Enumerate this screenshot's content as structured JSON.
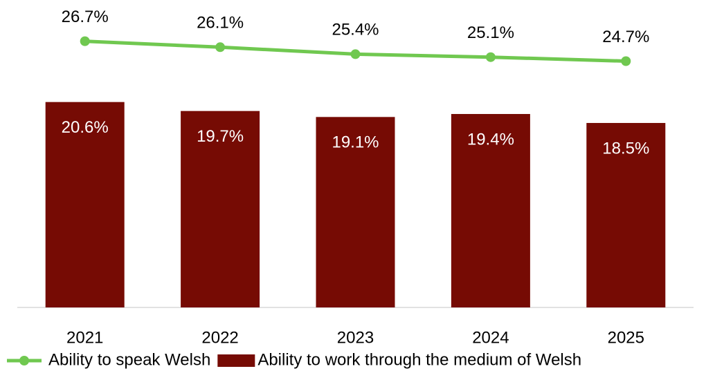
{
  "chart_data": {
    "type": "bar",
    "categories": [
      "2021",
      "2022",
      "2023",
      "2024",
      "2025"
    ],
    "ylim": [
      0,
      30
    ],
    "series": [
      {
        "name": "Ability to speak Welsh",
        "type": "line",
        "color": "#70c850",
        "values": [
          26.7,
          26.1,
          25.4,
          25.1,
          24.7
        ],
        "value_labels": [
          "26.7%",
          "26.1%",
          "25.4%",
          "25.1%",
          "24.7%"
        ]
      },
      {
        "name": "Ability to work through the medium of Welsh",
        "type": "bar",
        "color": "#760b04",
        "values": [
          20.6,
          19.7,
          19.1,
          19.4,
          18.5
        ],
        "value_labels": [
          "20.6%",
          "19.7%",
          "19.1%",
          "19.4%",
          "18.5%"
        ]
      }
    ],
    "legend": "bottom"
  }
}
